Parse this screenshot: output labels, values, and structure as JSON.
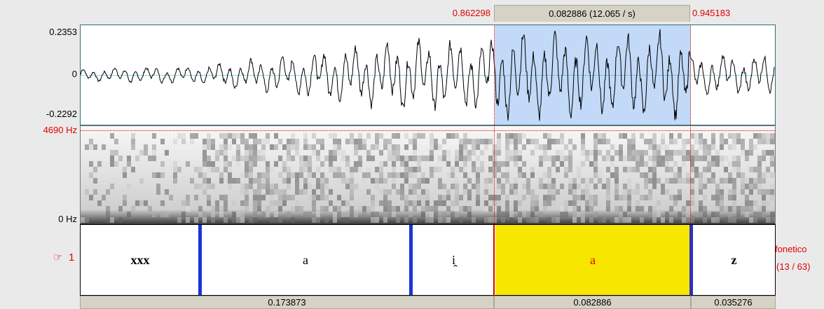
{
  "selection": {
    "start_time": "0.862298",
    "duration_label": "0.082886 (12.065 / s)",
    "end_time": "0.945183"
  },
  "waveform": {
    "y_max": "0.2353",
    "y_zero": "0",
    "y_min": "-0.2292"
  },
  "spectrogram": {
    "f_max": "4690 Hz",
    "f_min": "0 Hz"
  },
  "tier": {
    "pointer": "☞",
    "number": "1",
    "name": "fonetico",
    "count": "(13 / 63)",
    "intervals": [
      "xxx",
      "a",
      "i̯",
      "a",
      "z"
    ]
  },
  "durations": {
    "left": "0.173873",
    "selected": "0.082886",
    "right": "0.035276"
  },
  "colors": {
    "selection_blue": "#c2d9f7",
    "selected_interval": "#f7e600",
    "boundary": "#1a35d6",
    "cursor_red": "#e00000"
  }
}
